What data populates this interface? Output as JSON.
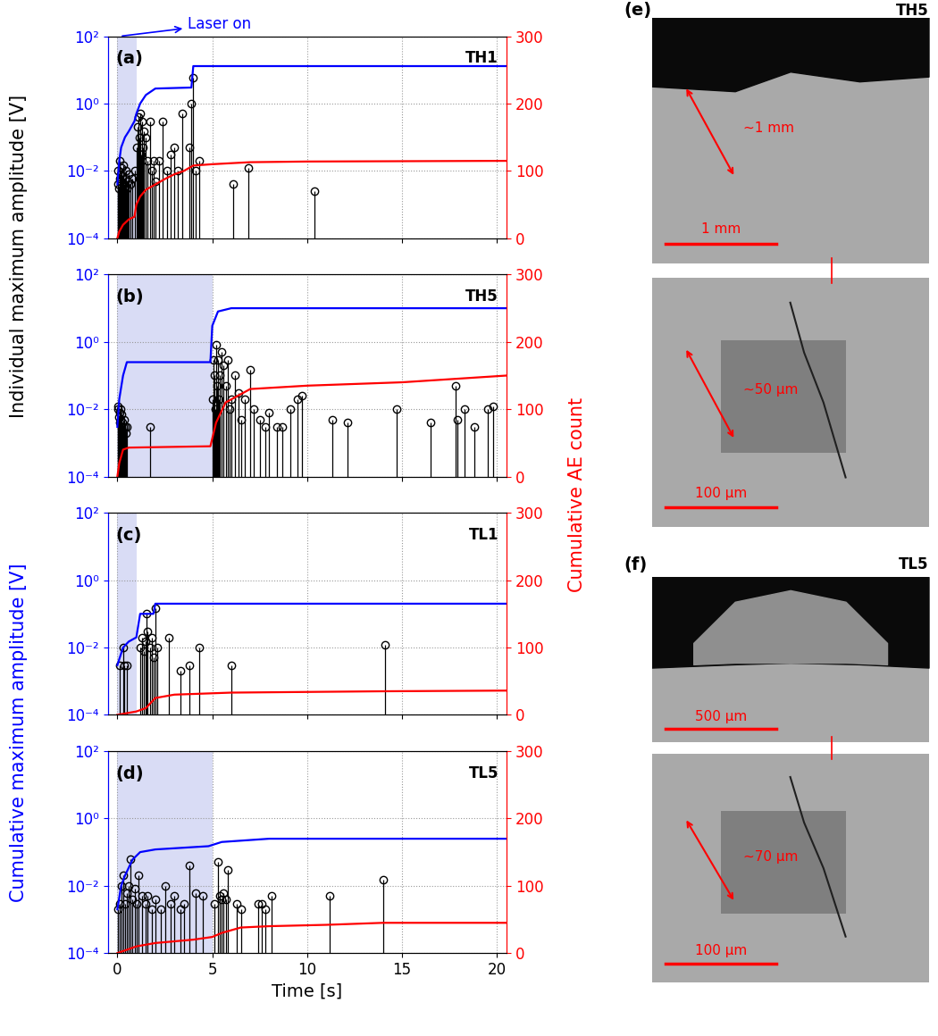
{
  "figure_texts": {
    "ylabel_left_top": "Individual maximum amplitude [V]",
    "ylabel_left_bottom": "Cumulative maximum amplitude [V]",
    "ylabel_right": "Cumulative AE count"
  },
  "chart_data": [
    {
      "type": "stem",
      "panel_label": "(a)",
      "sample": "TH1",
      "annotation": "Laser on",
      "laser_interval": [
        0,
        1
      ],
      "grid": true,
      "log": "y",
      "tick_labels": "y",
      "xlim": [
        -0.5,
        20.5
      ],
      "xticks": [
        0,
        5,
        10,
        15,
        20
      ],
      "ylim": [
        0.0001,
        100
      ],
      "yticks": [
        {
          "value": 0.0001,
          "label": "10⁻⁴"
        },
        {
          "value": 0.01,
          "label": "10⁻²"
        },
        {
          "value": 1,
          "label": "10⁰"
        },
        {
          "value": 100,
          "label": "10²"
        }
      ],
      "y2lim": [
        0,
        300
      ],
      "y2ticks": [
        0,
        100,
        200,
        300
      ],
      "series": [
        {
          "type": "stem",
          "color": "#000000",
          "marker": "o",
          "x": [
            0.02,
            0.05,
            0.08,
            0.1,
            0.12,
            0.15,
            0.18,
            0.2,
            0.25,
            0.28,
            0.3,
            0.35,
            0.4,
            0.45,
            0.5,
            0.55,
            0.6,
            0.7,
            0.8,
            0.9,
            1.0,
            1.05,
            1.1,
            1.15,
            1.2,
            1.25,
            1.3,
            1.35,
            1.4,
            1.5,
            1.6,
            1.7,
            1.8,
            1.9,
            2.0,
            2.2,
            2.4,
            2.6,
            2.8,
            3.0,
            3.2,
            3.4,
            3.8,
            3.9,
            4.0,
            4.1,
            4.3,
            6.1,
            6.9,
            10.4
          ],
          "values": [
            0.004,
            0.01,
            0.003,
            0.006,
            0.02,
            0.008,
            0.005,
            0.012,
            0.003,
            0.007,
            0.015,
            0.004,
            0.006,
            0.01,
            0.003,
            0.005,
            0.008,
            0.004,
            0.006,
            0.01,
            0.05,
            0.2,
            0.4,
            0.1,
            0.5,
            0.03,
            0.3,
            0.05,
            0.15,
            0.1,
            0.02,
            0.3,
            0.01,
            0.02,
            0.005,
            0.02,
            0.3,
            0.01,
            0.03,
            0.05,
            0.01,
            0.5,
            0.05,
            1.0,
            6.0,
            0.01,
            0.02,
            0.004,
            0.012,
            0.0025
          ]
        },
        {
          "type": "line",
          "color": "#0000ff",
          "line_style": "solid",
          "x": [
            0,
            0.1,
            0.2,
            0.4,
            0.6,
            0.9,
            1.0,
            1.2,
            1.5,
            2.0,
            3.9,
            4.0,
            20.5
          ],
          "values": [
            0.004,
            0.02,
            0.05,
            0.1,
            0.15,
            0.3,
            0.5,
            1.0,
            1.8,
            2.8,
            3.0,
            13,
            13
          ]
        },
        {
          "type": "line",
          "axis": "y2",
          "color": "#ff0000",
          "line_style": "solid",
          "x": [
            0,
            0.1,
            0.3,
            0.6,
            0.9,
            1.0,
            1.2,
            1.5,
            2.0,
            2.5,
            3.0,
            3.5,
            4.0,
            5.0,
            7.0,
            10.0,
            20.5
          ],
          "values": [
            0,
            10,
            20,
            28,
            32,
            50,
            62,
            72,
            80,
            88,
            95,
            100,
            108,
            110,
            113,
            114,
            115
          ]
        }
      ]
    },
    {
      "type": "stem",
      "panel_label": "(b)",
      "sample": "TH5",
      "laser_interval": [
        0,
        5
      ],
      "grid": true,
      "log": "y",
      "tick_labels": "y",
      "xlim": [
        -0.5,
        20.5
      ],
      "xticks": [
        0,
        5,
        10,
        15,
        20
      ],
      "ylim": [
        0.0001,
        100
      ],
      "yticks": [
        {
          "value": 0.0001,
          "label": "10⁻⁴"
        },
        {
          "value": 0.01,
          "label": "10⁻²"
        },
        {
          "value": 1,
          "label": "10⁰"
        },
        {
          "value": 100,
          "label": "10²"
        }
      ],
      "y2lim": [
        0,
        300
      ],
      "y2ticks": [
        0,
        100,
        200,
        300
      ],
      "series": [
        {
          "type": "stem",
          "color": "#000000",
          "marker": "o",
          "x": [
            0.02,
            0.05,
            0.08,
            0.1,
            0.12,
            0.15,
            0.18,
            0.2,
            0.22,
            0.25,
            0.28,
            0.3,
            0.35,
            0.4,
            0.45,
            0.5,
            1.7,
            5.0,
            5.05,
            5.1,
            5.15,
            5.2,
            5.25,
            5.3,
            5.35,
            5.4,
            5.5,
            5.6,
            5.7,
            5.8,
            5.9,
            6.0,
            6.2,
            6.4,
            6.5,
            6.7,
            7.0,
            7.2,
            7.5,
            7.8,
            8.0,
            8.4,
            8.7,
            9.1,
            9.5,
            9.7,
            11.3,
            12.1,
            14.7,
            16.5,
            17.8,
            17.9,
            18.3,
            18.8,
            19.5,
            19.8
          ],
          "values": [
            0.01,
            0.012,
            0.006,
            0.008,
            0.004,
            0.01,
            0.005,
            0.003,
            0.007,
            0.004,
            0.002,
            0.003,
            0.005,
            0.003,
            0.002,
            0.003,
            0.003,
            0.02,
            0.3,
            0.1,
            0.01,
            0.8,
            0.05,
            0.3,
            0.02,
            0.1,
            0.5,
            0.2,
            0.05,
            0.3,
            0.01,
            0.02,
            0.1,
            0.03,
            0.005,
            0.02,
            0.15,
            0.01,
            0.005,
            0.003,
            0.008,
            0.003,
            0.003,
            0.01,
            0.02,
            0.025,
            0.005,
            0.004,
            0.01,
            0.004,
            0.05,
            0.005,
            0.01,
            0.003,
            0.01,
            0.012
          ]
        },
        {
          "type": "line",
          "color": "#0000ff",
          "line_style": "solid",
          "x": [
            0,
            0.1,
            0.3,
            0.5,
            4.9,
            5.0,
            5.3,
            6.0,
            20.5
          ],
          "values": [
            0.003,
            0.02,
            0.1,
            0.25,
            0.25,
            3.0,
            8.0,
            10,
            10
          ]
        },
        {
          "type": "line",
          "axis": "y2",
          "color": "#ff0000",
          "line_style": "solid",
          "x": [
            0,
            0.1,
            0.3,
            0.6,
            4.9,
            5.2,
            5.7,
            7.0,
            10.0,
            15.0,
            20.5
          ],
          "values": [
            0,
            20,
            40,
            43,
            45,
            80,
            110,
            130,
            135,
            140,
            150
          ]
        }
      ]
    },
    {
      "type": "stem",
      "panel_label": "(c)",
      "sample": "TL1",
      "laser_interval": [
        0,
        1
      ],
      "grid": true,
      "log": "y",
      "tick_labels": "y",
      "xlim": [
        -0.5,
        20.5
      ],
      "xticks": [
        0,
        5,
        10,
        15,
        20
      ],
      "ylim": [
        0.0001,
        100
      ],
      "yticks": [
        {
          "value": 0.0001,
          "label": "10⁻⁴"
        },
        {
          "value": 0.01,
          "label": "10⁻²"
        },
        {
          "value": 1,
          "label": "10⁰"
        },
        {
          "value": 100,
          "label": "10²"
        }
      ],
      "y2lim": [
        0,
        300
      ],
      "y2ticks": [
        0,
        100,
        200,
        300
      ],
      "series": [
        {
          "type": "stem",
          "color": "#000000",
          "marker": "o",
          "x": [
            0.1,
            0.3,
            0.35,
            0.5,
            1.2,
            1.3,
            1.4,
            1.5,
            1.55,
            1.6,
            1.7,
            1.8,
            1.9,
            2.0,
            2.1,
            2.7,
            3.3,
            3.8,
            4.3,
            6.0,
            14.1
          ],
          "values": [
            0.003,
            0.01,
            0.003,
            0.003,
            0.01,
            0.02,
            0.008,
            0.015,
            0.1,
            0.03,
            0.01,
            0.02,
            0.005,
            0.15,
            0.01,
            0.02,
            0.002,
            0.003,
            0.01,
            0.003,
            0.012
          ]
        },
        {
          "type": "line",
          "color": "#0000ff",
          "line_style": "solid",
          "x": [
            0,
            0.3,
            0.6,
            1.0,
            1.2,
            1.9,
            2.0,
            20.5
          ],
          "values": [
            0.003,
            0.01,
            0.015,
            0.02,
            0.1,
            0.1,
            0.2,
            0.2
          ]
        },
        {
          "type": "line",
          "axis": "y2",
          "color": "#ff0000",
          "line_style": "solid",
          "x": [
            0,
            1.0,
            1.5,
            2.0,
            3.0,
            6.0,
            14.0,
            20.5
          ],
          "values": [
            0,
            5,
            10,
            25,
            30,
            33,
            35,
            36
          ]
        }
      ]
    },
    {
      "type": "stem",
      "panel_label": "(d)",
      "sample": "TL5",
      "xlabel": "Time [s]",
      "laser_interval": [
        0,
        5
      ],
      "grid": true,
      "log": "y",
      "xlim": [
        -0.5,
        20.5
      ],
      "xticks": [
        0,
        5,
        10,
        15,
        20
      ],
      "ylim": [
        0.0001,
        100
      ],
      "yticks": [
        {
          "value": 0.0001,
          "label": "10⁻⁴"
        },
        {
          "value": 0.01,
          "label": "10⁻²"
        },
        {
          "value": 1,
          "label": "10⁰"
        },
        {
          "value": 100,
          "label": "10²"
        }
      ],
      "y2lim": [
        0,
        300
      ],
      "y2ticks": [
        0,
        100,
        200,
        300
      ],
      "series": [
        {
          "type": "stem",
          "color": "#000000",
          "marker": "o",
          "x": [
            0.05,
            0.1,
            0.2,
            0.3,
            0.4,
            0.5,
            0.6,
            0.7,
            0.8,
            0.9,
            1.0,
            1.1,
            1.3,
            1.5,
            1.6,
            1.8,
            2.0,
            2.3,
            2.5,
            2.8,
            3.0,
            3.3,
            3.5,
            3.8,
            4.1,
            4.5,
            5.1,
            5.3,
            5.4,
            5.5,
            5.6,
            5.7,
            5.8,
            6.3,
            6.5,
            7.4,
            7.6,
            7.8,
            8.1,
            11.2,
            14.0
          ],
          "values": [
            0.002,
            0.003,
            0.01,
            0.02,
            0.003,
            0.006,
            0.01,
            0.06,
            0.004,
            0.008,
            0.003,
            0.02,
            0.005,
            0.003,
            0.005,
            0.002,
            0.004,
            0.002,
            0.01,
            0.003,
            0.005,
            0.002,
            0.003,
            0.04,
            0.006,
            0.005,
            0.003,
            0.05,
            0.005,
            0.004,
            0.006,
            0.004,
            0.03,
            0.003,
            0.002,
            0.003,
            0.003,
            0.002,
            0.005,
            0.005,
            0.015
          ]
        },
        {
          "type": "line",
          "color": "#0000ff",
          "line_style": "solid",
          "x": [
            0,
            0.2,
            0.4,
            0.8,
            1.2,
            2.0,
            4.8,
            5.5,
            8.0,
            20.5
          ],
          "values": [
            0.002,
            0.01,
            0.02,
            0.06,
            0.1,
            0.12,
            0.15,
            0.2,
            0.25,
            0.25
          ]
        },
        {
          "type": "line",
          "axis": "y2",
          "color": "#ff0000",
          "line_style": "solid",
          "x": [
            0,
            0.5,
            1.0,
            2.0,
            4.0,
            5.0,
            5.5,
            6.5,
            8.0,
            11.0,
            14.0,
            20.5
          ],
          "values": [
            0,
            5,
            10,
            15,
            20,
            24,
            30,
            38,
            40,
            42,
            45,
            45
          ]
        }
      ]
    }
  ],
  "micrographs": [
    {
      "label": "(e)",
      "sample": "TH5",
      "images": [
        {
          "measure": "~1 mm",
          "scale_bar": "1 mm"
        },
        {
          "measure": "~50 µm",
          "scale_bar": "100 µm"
        }
      ]
    },
    {
      "label": "(f)",
      "sample": "TL5",
      "images": [
        {
          "scale_bar": "500 µm"
        },
        {
          "measure": "~70 µm",
          "scale_bar": "100 µm"
        }
      ]
    }
  ]
}
